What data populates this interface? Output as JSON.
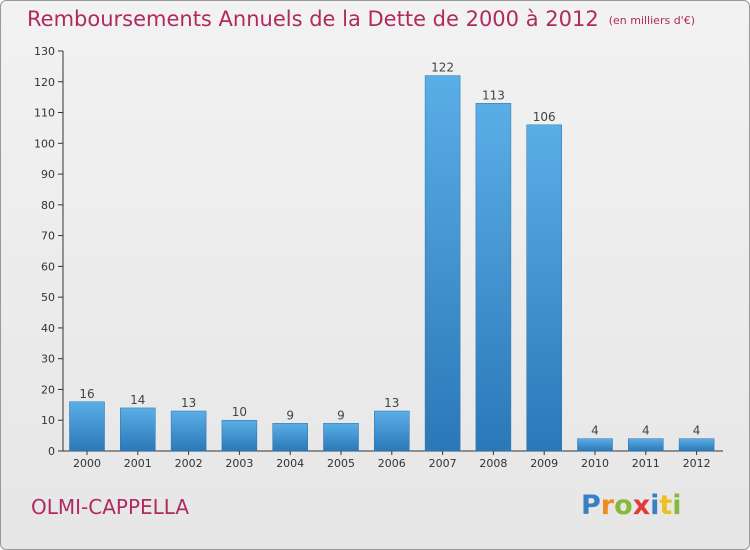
{
  "header": {
    "title": "Remboursements Annuels de la Dette de 2000 à 2012",
    "unit": "(en milliers d'€)"
  },
  "footer": {
    "commune": "OLMI-CAPPELLA",
    "logo": "Proxiti"
  },
  "colors": {
    "title": "#b02a5f",
    "bar_top": "#5aaee6",
    "bar_bottom": "#2b78b8"
  },
  "chart_data": {
    "type": "bar",
    "title": "Remboursements Annuels de la Dette de 2000 à 2012",
    "categories": [
      "2000",
      "2001",
      "2002",
      "2003",
      "2004",
      "2005",
      "2006",
      "2007",
      "2008",
      "2009",
      "2010",
      "2011",
      "2012"
    ],
    "values": [
      16,
      14,
      13,
      10,
      9,
      9,
      13,
      122,
      113,
      106,
      4,
      4,
      4
    ],
    "ylim": [
      0,
      130
    ],
    "yticks": [
      0,
      10,
      20,
      30,
      40,
      50,
      60,
      70,
      80,
      90,
      100,
      110,
      120,
      130
    ],
    "xlabel": "",
    "ylabel": "",
    "grid": false,
    "data_labels": true
  }
}
